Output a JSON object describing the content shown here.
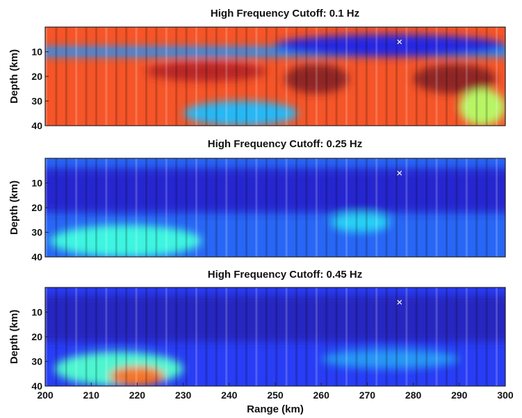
{
  "chart_data": [
    {
      "type": "heatmap",
      "title": "High Frequency Cutoff: 0.1 Hz",
      "xlabel": "",
      "ylabel": "Depth (km)",
      "xlim": [
        200,
        300
      ],
      "ylim": [
        40,
        0
      ],
      "yticks": [
        10,
        20,
        30,
        40
      ],
      "xticks": [],
      "colormap": "jet",
      "marker": {
        "x": 277,
        "y": 6,
        "symbol": "x"
      },
      "features": [
        {
          "shape": "band",
          "x": [
            200,
            300
          ],
          "depth": [
            8,
            12
          ],
          "level": 0.25
        },
        {
          "shape": "blob",
          "x": [
            250,
            300
          ],
          "depth": [
            3,
            12
          ],
          "level": 0.1
        },
        {
          "shape": "blob",
          "x": [
            230,
            255
          ],
          "depth": [
            30,
            40
          ],
          "level": 0.3
        },
        {
          "shape": "blob",
          "x": [
            252,
            266
          ],
          "depth": [
            15,
            27
          ],
          "level": 1.0
        },
        {
          "shape": "blob",
          "x": [
            280,
            298
          ],
          "depth": [
            15,
            27
          ],
          "level": 1.0
        },
        {
          "shape": "blob",
          "x": [
            222,
            248
          ],
          "depth": [
            14,
            22
          ],
          "level": 0.95
        },
        {
          "shape": "blob",
          "x": [
            290,
            300
          ],
          "depth": [
            25,
            40
          ],
          "level": 0.55
        }
      ]
    },
    {
      "type": "heatmap",
      "title": "High Frequency Cutoff: 0.25 Hz",
      "xlabel": "",
      "ylabel": "Depth (km)",
      "xlim": [
        200,
        300
      ],
      "ylim": [
        40,
        0
      ],
      "yticks": [
        10,
        20,
        30,
        40
      ],
      "xticks": [],
      "colormap": "jet",
      "marker": {
        "x": 277,
        "y": 6,
        "symbol": "x"
      },
      "features": [
        {
          "shape": "band",
          "x": [
            200,
            300
          ],
          "depth": [
            4,
            22
          ],
          "level": 0.08
        },
        {
          "shape": "blob",
          "x": [
            201,
            234
          ],
          "depth": [
            27,
            40
          ],
          "level": 0.4
        },
        {
          "shape": "blob",
          "x": [
            262,
            275
          ],
          "depth": [
            22,
            30
          ],
          "level": 0.33
        }
      ]
    },
    {
      "type": "heatmap",
      "title": "High Frequency Cutoff: 0.45 Hz",
      "xlabel": "Range (km)",
      "ylabel": "Depth (km)",
      "xlim": [
        200,
        300
      ],
      "ylim": [
        40,
        0
      ],
      "yticks": [
        10,
        20,
        30,
        40
      ],
      "xticks": [
        200,
        210,
        220,
        230,
        240,
        250,
        260,
        270,
        280,
        290,
        300
      ],
      "colormap": "jet",
      "marker": {
        "x": 277,
        "y": 6,
        "symbol": "x"
      },
      "features": [
        {
          "shape": "band",
          "x": [
            200,
            300
          ],
          "depth": [
            3,
            22
          ],
          "level": 0.06
        },
        {
          "shape": "blob",
          "x": [
            202,
            230
          ],
          "depth": [
            26,
            40
          ],
          "level": 0.42
        },
        {
          "shape": "blob",
          "x": [
            214,
            226
          ],
          "depth": [
            32,
            40
          ],
          "level": 0.78
        },
        {
          "shape": "blob",
          "x": [
            260,
            290
          ],
          "depth": [
            25,
            33
          ],
          "level": 0.26
        }
      ]
    }
  ]
}
